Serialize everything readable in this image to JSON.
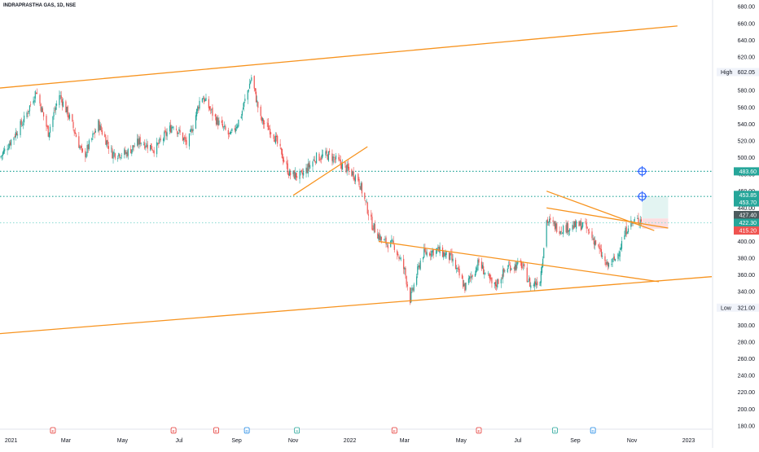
{
  "header": {
    "title": "INDRAPRASTHA GAS, 1D, NSE"
  },
  "chart_data": {
    "type": "candlestick",
    "y_axis": {
      "ticks": [
        180,
        200,
        220,
        240,
        260,
        280,
        300,
        320,
        340,
        360,
        380,
        400,
        420,
        440,
        460,
        480,
        500,
        520,
        540,
        560,
        580,
        600,
        620,
        640,
        660,
        680
      ],
      "tick_labels": [
        "180.00",
        "200.00",
        "220.00",
        "240.00",
        "260.00",
        "280.00",
        "300.00",
        "320.00",
        "340.00",
        "360.00",
        "380.00",
        "400.00",
        "420.00",
        "440.00",
        "460.00",
        "480.00",
        "500.00",
        "520.00",
        "540.00",
        "560.00",
        "580.00",
        "600.00",
        "620.00",
        "640.00",
        "660.00",
        "680.00"
      ],
      "ylim": [
        176,
        688
      ]
    },
    "x_axis": {
      "tick_labels": [
        "2021",
        "Mar",
        "May",
        "Jul",
        "Sep",
        "Nov",
        "2022",
        "Mar",
        "May",
        "Jul",
        "Sep",
        "Nov",
        "2023"
      ],
      "tick_dates": [
        "2021-01-01",
        "2021-03-01",
        "2021-05-01",
        "2021-07-01",
        "2021-09-01",
        "2021-11-01",
        "2022-01-01",
        "2022-03-01",
        "2022-05-01",
        "2022-07-01",
        "2022-09-01",
        "2022-11-01",
        "2023-01-01"
      ],
      "range": [
        "2020-12-20",
        "2023-01-26"
      ]
    },
    "price_path": [
      [
        "2020-12-20",
        500
      ],
      [
        "2021-01-15",
        545
      ],
      [
        "2021-01-28",
        580
      ],
      [
        "2021-02-10",
        530
      ],
      [
        "2021-02-22",
        575
      ],
      [
        "2021-03-06",
        545
      ],
      [
        "2021-03-20",
        500
      ],
      [
        "2021-04-05",
        540
      ],
      [
        "2021-04-20",
        505
      ],
      [
        "2021-05-05",
        505
      ],
      [
        "2021-05-20",
        520
      ],
      [
        "2021-06-05",
        510
      ],
      [
        "2021-06-25",
        540
      ],
      [
        "2021-07-10",
        515
      ],
      [
        "2021-07-25",
        575
      ],
      [
        "2021-08-10",
        545
      ],
      [
        "2021-08-25",
        525
      ],
      [
        "2021-09-05",
        548
      ],
      [
        "2021-09-17",
        596
      ],
      [
        "2021-09-27",
        545
      ],
      [
        "2021-10-10",
        530
      ],
      [
        "2021-10-28",
        480
      ],
      [
        "2021-11-10",
        478
      ],
      [
        "2021-11-25",
        500
      ],
      [
        "2021-12-10",
        503
      ],
      [
        "2021-12-25",
        490
      ],
      [
        "2022-01-10",
        475
      ],
      [
        "2022-01-25",
        420
      ],
      [
        "2022-02-05",
        400
      ],
      [
        "2022-02-18",
        395
      ],
      [
        "2022-03-01",
        365
      ],
      [
        "2022-03-07",
        331
      ],
      [
        "2022-03-20",
        385
      ],
      [
        "2022-04-05",
        390
      ],
      [
        "2022-04-20",
        380
      ],
      [
        "2022-05-05",
        345
      ],
      [
        "2022-05-20",
        375
      ],
      [
        "2022-06-05",
        345
      ],
      [
        "2022-06-20",
        370
      ],
      [
        "2022-07-05",
        372
      ],
      [
        "2022-07-15",
        347
      ],
      [
        "2022-07-25",
        355
      ],
      [
        "2022-08-01",
        425
      ],
      [
        "2022-08-15",
        415
      ],
      [
        "2022-08-30",
        418
      ],
      [
        "2022-09-10",
        420
      ],
      [
        "2022-09-22",
        400
      ],
      [
        "2022-10-05",
        370
      ],
      [
        "2022-10-15",
        380
      ],
      [
        "2022-10-28",
        420
      ],
      [
        "2022-11-12",
        427.4
      ]
    ],
    "high_low": {
      "high": {
        "label": "High",
        "value": "602.05",
        "y": 602.05
      },
      "low": {
        "label": "Low",
        "value": "321.00",
        "y": 321.0
      }
    },
    "price_tags": [
      {
        "value": "483.60",
        "y": 483.6,
        "bg": "#26a69a"
      },
      {
        "value": "453.85",
        "y": 455.5,
        "bg": "#26a69a"
      },
      {
        "value": "453.70",
        "y": 446.5,
        "bg": "#26a69a"
      },
      {
        "value": "427.40",
        "y": 431.5,
        "bg": "#4d5b5e"
      },
      {
        "value": "422.30",
        "y": 422.3,
        "bg": "#26a69a"
      },
      {
        "value": "415.20",
        "y": 413.0,
        "bg": "#ef5350"
      }
    ],
    "horizontal_levels": [
      {
        "y": 483.6,
        "color": "#26a69a",
        "style": "dotted"
      },
      {
        "y": 453.7,
        "color": "#26a69a",
        "style": "dotted"
      },
      {
        "y": 422.3,
        "color": "#9adfd9",
        "style": "dotted"
      }
    ],
    "trendlines": [
      {
        "color": "#f7931e",
        "from": [
          "2020-12-20",
          583
        ],
        "to": [
          "2022-12-20",
          657
        ]
      },
      {
        "color": "#f7931e",
        "from": [
          "2020-12-20",
          290
        ],
        "to": [
          "2023-01-26",
          358
        ]
      },
      {
        "color": "#f7931e",
        "from": [
          "2021-11-01",
          455
        ],
        "to": [
          "2022-01-20",
          513
        ]
      },
      {
        "color": "#f7931e",
        "from": [
          "2022-02-01",
          400
        ],
        "to": [
          "2022-11-30",
          352
        ]
      },
      {
        "color": "#f7931e",
        "from": [
          "2022-08-01",
          440
        ],
        "to": [
          "2022-12-10",
          416
        ]
      },
      {
        "color": "#f7931e",
        "from": [
          "2022-08-01",
          460
        ],
        "to": [
          "2022-11-25",
          413
        ]
      }
    ],
    "position_zone": {
      "x_from": "2022-11-12",
      "x_to": "2022-12-10",
      "target_top": 453.7,
      "entry": 427.4,
      "stop_bottom": 415.2,
      "target_color": "#e3f4f2",
      "stop_color": "#fbdde0"
    },
    "target_markers": [
      {
        "x": "2022-11-12",
        "y": 483.6
      },
      {
        "x": "2022-11-12",
        "y": 453.7
      }
    ],
    "event_markers": [
      {
        "x": "2021-02-15",
        "type": "earnings",
        "label": "E"
      },
      {
        "x": "2021-06-25",
        "type": "earnings",
        "label": "E"
      },
      {
        "x": "2021-08-10",
        "type": "earnings",
        "label": "E"
      },
      {
        "x": "2021-09-12",
        "type": "dividend",
        "label": "D"
      },
      {
        "x": "2021-11-05",
        "type": "split",
        "label": "S"
      },
      {
        "x": "2022-02-18",
        "type": "earnings",
        "label": "E"
      },
      {
        "x": "2022-05-20",
        "type": "earnings",
        "label": "E"
      },
      {
        "x": "2022-08-10",
        "type": "split",
        "label": "S"
      },
      {
        "x": "2022-09-20",
        "type": "dividend",
        "label": "D"
      }
    ]
  }
}
